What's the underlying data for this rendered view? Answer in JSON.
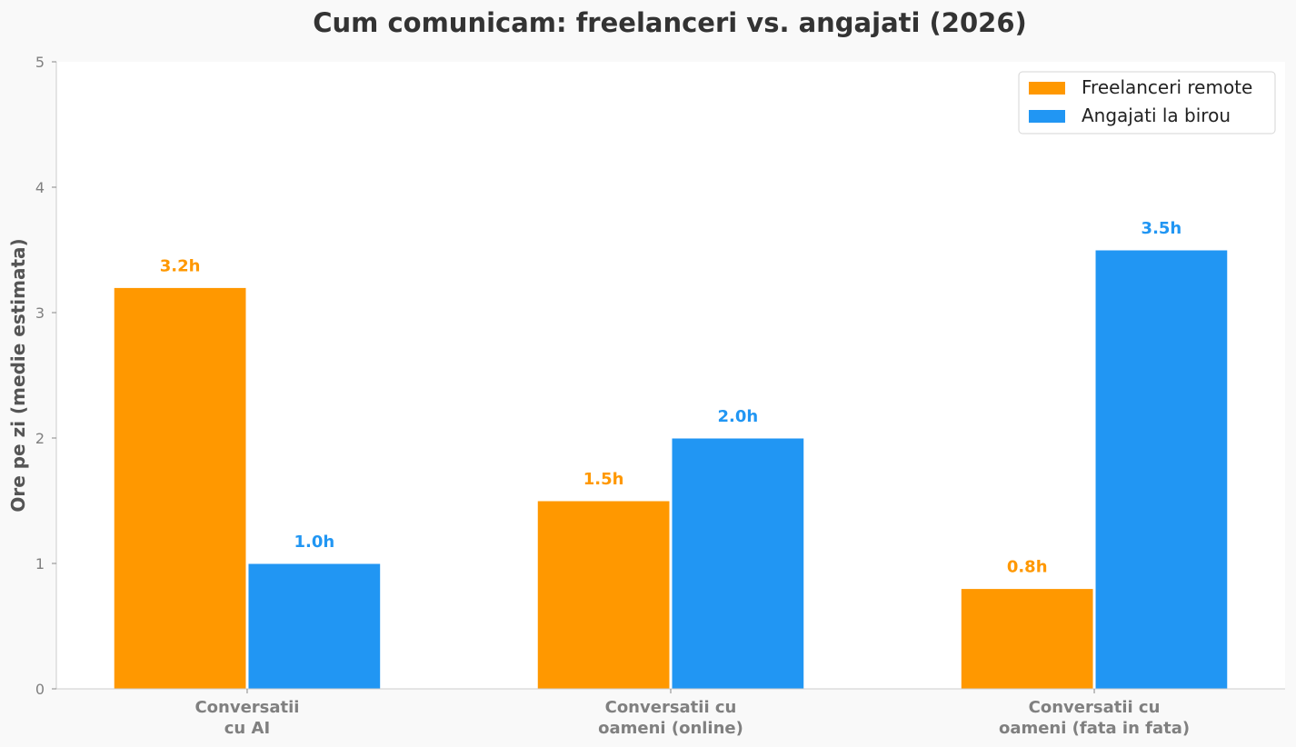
{
  "chart_data": {
    "type": "bar",
    "title": "Cum comunicam: freelanceri vs. angajati (2026)",
    "xlabel": "",
    "ylabel": "Ore pe zi (medie estimata)",
    "ylim": [
      0,
      5
    ],
    "yticks": [
      0,
      1,
      2,
      3,
      4,
      5
    ],
    "grid": false,
    "legend_position": "top-right",
    "categories": [
      [
        "Conversatii",
        "cu AI"
      ],
      [
        "Conversatii cu",
        "oameni (online)"
      ],
      [
        "Conversatii cu",
        "oameni (fata in fata)"
      ]
    ],
    "series": [
      {
        "name": "Freelanceri remote",
        "color": "#ff9800",
        "values": [
          3.2,
          1.5,
          0.8
        ],
        "labels": [
          "3.2h",
          "1.5h",
          "0.8h"
        ]
      },
      {
        "name": "Angajati la birou",
        "color": "#2196f3",
        "values": [
          1.0,
          2.0,
          3.5
        ],
        "labels": [
          "1.0h",
          "2.0h",
          "3.5h"
        ]
      }
    ],
    "colors": {
      "background": "#f9f9f9",
      "plot_background": "#ffffff",
      "axis": "#cccccc",
      "tick_text": "#808080",
      "title_text": "#333333"
    }
  }
}
